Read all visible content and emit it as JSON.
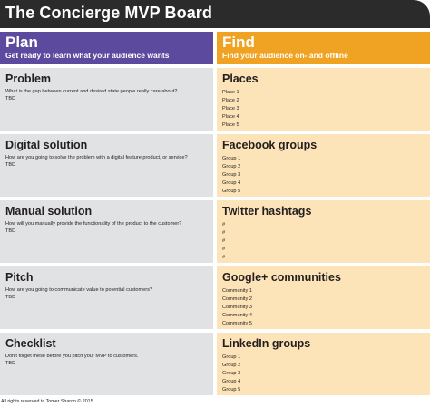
{
  "title": "The Concierge MVP Board",
  "colors": {
    "title_bar": "#2b2b2b",
    "plan_header": "#5b4a9e",
    "find_header": "#f0a323",
    "plan_cell": "#e1e2e4",
    "find_cell": "#fde4b8"
  },
  "plan": {
    "heading": "Plan",
    "subheading": "Get ready to learn what your audience wants",
    "sections": [
      {
        "title": "Problem",
        "description": "What is the gap between current and desired state people really care about?",
        "value": "TBD"
      },
      {
        "title": "Digital solution",
        "description": "How are you going to solve the problem with a digital feature product, or service?",
        "value": "TBD"
      },
      {
        "title": "Manual solution",
        "description": "How will you manually provide the functionality of the product to the customer?",
        "value": "TBD"
      },
      {
        "title": "Pitch",
        "description": "How are you going to communicate value to potential customers?",
        "value": "TBD"
      },
      {
        "title": "Checklist",
        "description": "Don't forget these before you pitch your MVP to customers.",
        "value": "TBD"
      }
    ]
  },
  "find": {
    "heading": "Find",
    "subheading": "Find your audience on- and offline",
    "sections": [
      {
        "title": "Places",
        "items": [
          "Place 1",
          "Place 2",
          "Place 3",
          "Place 4",
          "Place 5"
        ]
      },
      {
        "title": "Facebook groups",
        "items": [
          "Group 1",
          "Group 2",
          "Group 3",
          "Group 4",
          "Group 5"
        ]
      },
      {
        "title": "Twitter hashtags",
        "items": [
          "#",
          "#",
          "#",
          "#",
          "#"
        ]
      },
      {
        "title": "Google+ communities",
        "items": [
          "Community 1",
          "Community 2",
          "Community 3",
          "Community 4",
          "Community 5"
        ]
      },
      {
        "title": "LinkedIn groups",
        "items": [
          "Group 1",
          "Group 2",
          "Group 3",
          "Group 4",
          "Group 5"
        ]
      }
    ]
  },
  "footer": "All rights reserved to Tomer Sharon © 2015."
}
